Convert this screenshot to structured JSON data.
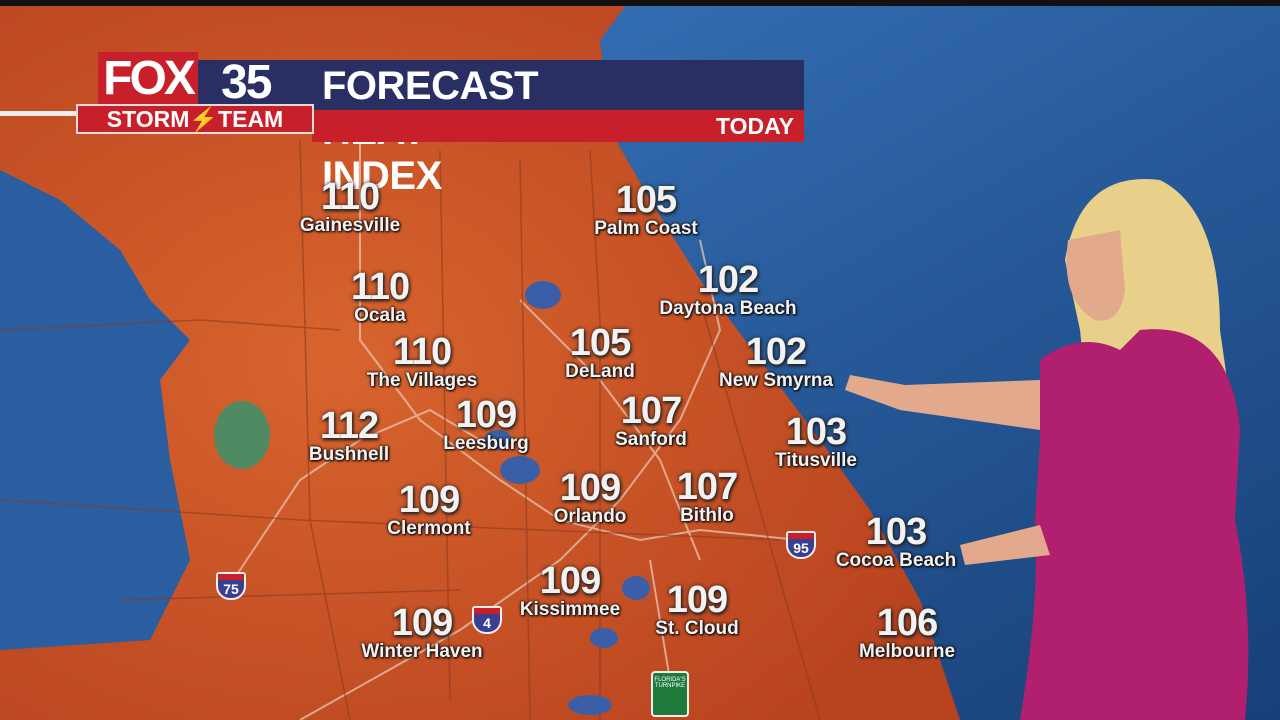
{
  "header": {
    "logo": "FOX",
    "channel": "35",
    "brand": "STORM⚡TEAM",
    "title": "FORECAST HEAT INDEX",
    "period": "TODAY"
  },
  "colors": {
    "brand_red": "#c8202b",
    "brand_navy": "#2a2f63",
    "land_heat": "#c9502a",
    "water": "#2a62a8",
    "presenter_dress": "#b0206e"
  },
  "cities": [
    {
      "name": "Gainesville",
      "value": "110"
    },
    {
      "name": "Palm Coast",
      "value": "105"
    },
    {
      "name": "Ocala",
      "value": "110"
    },
    {
      "name": "Daytona Beach",
      "value": "102"
    },
    {
      "name": "DeLand",
      "value": "105"
    },
    {
      "name": "The Villages",
      "value": "110"
    },
    {
      "name": "New Smyrna",
      "value": "102"
    },
    {
      "name": "Bushnell",
      "value": "112"
    },
    {
      "name": "Leesburg",
      "value": "109"
    },
    {
      "name": "Sanford",
      "value": "107"
    },
    {
      "name": "Titusville",
      "value": "103"
    },
    {
      "name": "Clermont",
      "value": "109"
    },
    {
      "name": "Orlando",
      "value": "109"
    },
    {
      "name": "Bithlo",
      "value": "107"
    },
    {
      "name": "Cocoa Beach",
      "value": "103"
    },
    {
      "name": "Kissimmee",
      "value": "109"
    },
    {
      "name": "St. Cloud",
      "value": "109"
    },
    {
      "name": "Winter Haven",
      "value": "109"
    },
    {
      "name": "Melbourne",
      "value": "106"
    }
  ],
  "highways": [
    {
      "label": "75",
      "icon": "interstate-shield-icon"
    },
    {
      "label": "95",
      "icon": "interstate-shield-icon"
    },
    {
      "label": "4",
      "icon": "interstate-shield-icon"
    },
    {
      "label": "FLORIDA'S TURNPIKE",
      "icon": "turnpike-shield-icon"
    }
  ]
}
